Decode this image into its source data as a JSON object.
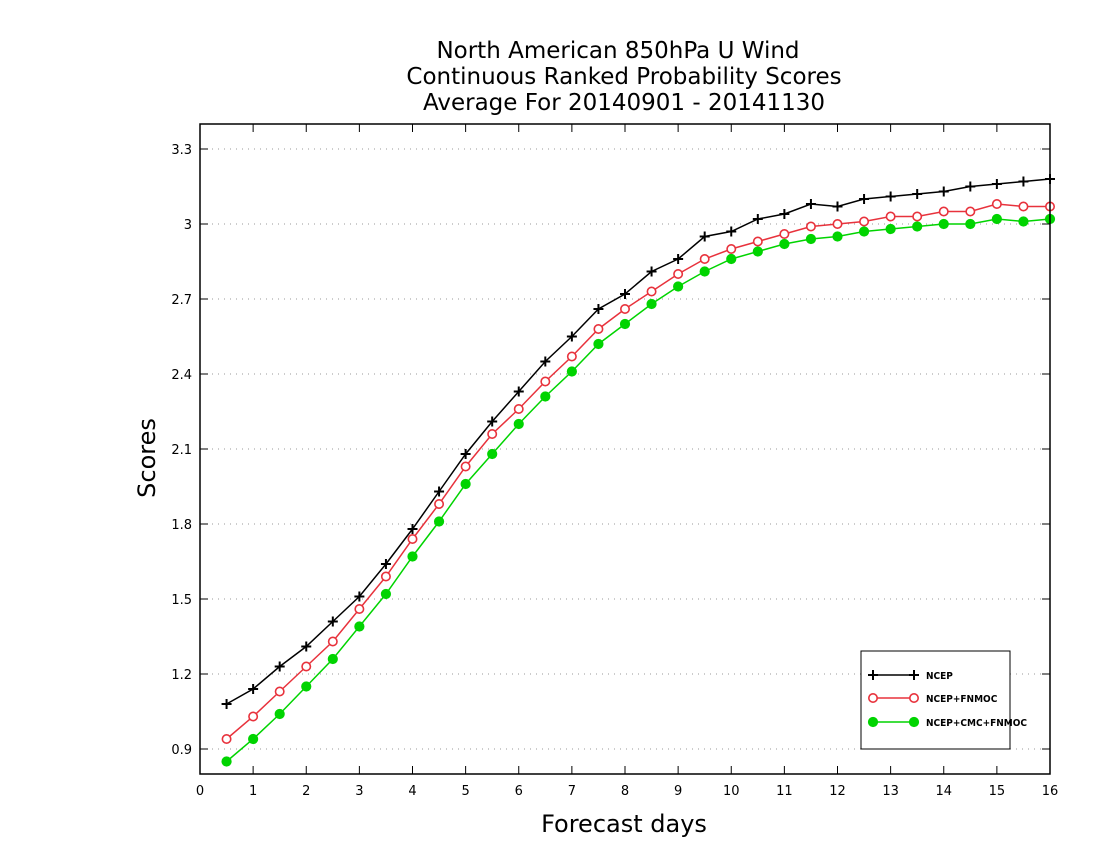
{
  "chart_data": {
    "type": "line",
    "title": [
      "North American 850hPa U Wind",
      "Continuous Ranked Probability Scores",
      "Average For 20140901 - 20141130"
    ],
    "xlabel": "Forecast days",
    "ylabel": "Scores",
    "xlim": [
      0,
      16
    ],
    "ylim": [
      0.8,
      3.4
    ],
    "xticks": [
      0,
      1,
      2,
      3,
      4,
      5,
      6,
      7,
      8,
      9,
      10,
      11,
      12,
      13,
      14,
      15,
      16
    ],
    "yticks": [
      0.9,
      1.2,
      1.5,
      1.8,
      2.1,
      2.4,
      2.7,
      3,
      3.3
    ],
    "grid": "horizontal-dotted",
    "legend_position": "bottom-right",
    "x": [
      0.5,
      1,
      1.5,
      2,
      2.5,
      3,
      3.5,
      4,
      4.5,
      5,
      5.5,
      6,
      6.5,
      7,
      7.5,
      8,
      8.5,
      9,
      9.5,
      10,
      10.5,
      11,
      11.5,
      12,
      12.5,
      13,
      13.5,
      14,
      14.5,
      15,
      15.5,
      16
    ],
    "series": [
      {
        "name": "NCEP",
        "color": "#000000",
        "marker": "plus",
        "values": [
          1.08,
          1.14,
          1.23,
          1.31,
          1.41,
          1.51,
          1.64,
          1.78,
          1.93,
          2.08,
          2.21,
          2.33,
          2.45,
          2.55,
          2.66,
          2.72,
          2.81,
          2.86,
          2.95,
          2.97,
          3.02,
          3.04,
          3.08,
          3.07,
          3.1,
          3.11,
          3.12,
          3.13,
          3.15,
          3.16,
          3.17,
          3.18
        ]
      },
      {
        "name": "NCEP+FNMOC",
        "color": "#e8323c",
        "marker": "open-circle",
        "values": [
          0.94,
          1.03,
          1.13,
          1.23,
          1.33,
          1.46,
          1.59,
          1.74,
          1.88,
          2.03,
          2.16,
          2.26,
          2.37,
          2.47,
          2.58,
          2.66,
          2.73,
          2.8,
          2.86,
          2.9,
          2.93,
          2.96,
          2.99,
          3.0,
          3.01,
          3.03,
          3.03,
          3.05,
          3.05,
          3.08,
          3.07,
          3.07
        ]
      },
      {
        "name": "NCEP+CMC+FNMOC",
        "color": "#00d400",
        "marker": "filled-circle",
        "values": [
          0.85,
          0.94,
          1.04,
          1.15,
          1.26,
          1.39,
          1.52,
          1.67,
          1.81,
          1.96,
          2.08,
          2.2,
          2.31,
          2.41,
          2.52,
          2.6,
          2.68,
          2.75,
          2.81,
          2.86,
          2.89,
          2.92,
          2.94,
          2.95,
          2.97,
          2.98,
          2.99,
          3.0,
          3.0,
          3.02,
          3.01,
          3.02
        ]
      }
    ]
  }
}
